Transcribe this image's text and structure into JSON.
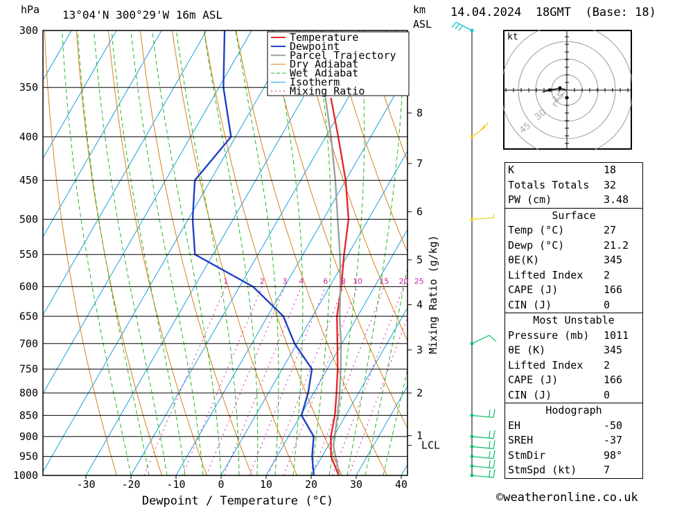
{
  "header": {
    "pressure_unit": "hPa",
    "location": "13°04'N  300°29'W  16m  ASL",
    "km_label": "km",
    "asl_label": "ASL",
    "datetime": "14.04.2024  18GMT  (Base: 18)"
  },
  "colors": {
    "temperature": "#e8282a",
    "dewpoint": "#1f3fc8",
    "parcel": "#a0a0a0",
    "dry_adiabat": "#d8801a",
    "wet_adiabat": "#22b822",
    "isotherm": "#19a0e0",
    "mixing_ratio": "#d21aa0",
    "wind_green": "#18c070",
    "wind_yellow": "#e8d020",
    "wind_cyan": "#10c8d0"
  },
  "chart_data": {
    "type": "line",
    "title": "13°04'N  300°29'W  16m  ASL",
    "xlabel": "Dewpoint / Temperature (°C)",
    "ylabel": "hPa",
    "ylabel_right": "Mixing Ratio (g/kg)",
    "xlim": [
      -40,
      40
    ],
    "pressure_levels": [
      300,
      350,
      400,
      450,
      500,
      550,
      600,
      650,
      700,
      750,
      800,
      850,
      900,
      950,
      1000
    ],
    "temp_ticks": [
      -30,
      -20,
      -10,
      0,
      10,
      20,
      30,
      40
    ],
    "km_ticks": [
      {
        "label": "1",
        "p": 898
      },
      {
        "label": "2",
        "p": 800
      },
      {
        "label": "3",
        "p": 712
      },
      {
        "label": "4",
        "p": 630
      },
      {
        "label": "5",
        "p": 558
      },
      {
        "label": "6",
        "p": 490
      },
      {
        "label": "7",
        "p": 430
      },
      {
        "label": "8",
        "p": 375
      }
    ],
    "lcl": {
      "label": "LCL",
      "p": 922
    },
    "mixing_ratio_labels": [
      "1",
      "2",
      "3",
      "4",
      "6",
      "8",
      "10",
      "15",
      "20",
      "25"
    ],
    "mixing_ratio_values": [
      1,
      2,
      3,
      4,
      6,
      8,
      10,
      15,
      20,
      25
    ],
    "legend": [
      "Temperature",
      "Dewpoint",
      "Parcel Trajectory",
      "Dry Adiabat",
      "Wet Adiabat",
      "Isotherm",
      "Mixing Ratio"
    ],
    "legend_position": "top-center",
    "series": [
      {
        "name": "Temperature",
        "points": [
          [
            1011,
            27.0
          ],
          [
            950,
            22.0
          ],
          [
            900,
            19.4
          ],
          [
            850,
            17.6
          ],
          [
            800,
            15.1
          ],
          [
            750,
            12.3
          ],
          [
            700,
            9.0
          ],
          [
            650,
            5.4
          ],
          [
            600,
            2.6
          ],
          [
            550,
            -0.9
          ],
          [
            500,
            -4.4
          ],
          [
            450,
            -10.0
          ],
          [
            400,
            -17.2
          ],
          [
            360,
            -23.8
          ]
        ]
      },
      {
        "name": "Dewpoint",
        "points": [
          [
            1011,
            21.2
          ],
          [
            950,
            17.8
          ],
          [
            900,
            15.6
          ],
          [
            850,
            10.2
          ],
          [
            800,
            8.8
          ],
          [
            750,
            6.6
          ],
          [
            700,
            -0.5
          ],
          [
            650,
            -6.5
          ],
          [
            600,
            -17.0
          ],
          [
            550,
            -34.0
          ],
          [
            500,
            -39.0
          ],
          [
            450,
            -43.5
          ],
          [
            400,
            -41.0
          ],
          [
            350,
            -49.0
          ],
          [
            300,
            -56.0
          ]
        ]
      },
      {
        "name": "Parcel Trajectory",
        "points": [
          [
            1011,
            27.0
          ],
          [
            922,
            21.1
          ],
          [
            850,
            18.2
          ],
          [
            800,
            15.8
          ],
          [
            750,
            13.0
          ],
          [
            700,
            9.8
          ],
          [
            650,
            6.0
          ],
          [
            600,
            2.4
          ],
          [
            550,
            -1.8
          ],
          [
            500,
            -6.8
          ],
          [
            450,
            -12.3
          ],
          [
            400,
            -18.8
          ],
          [
            360,
            -25.0
          ],
          [
            330,
            -29.5
          ],
          [
            300,
            -34.5
          ]
        ]
      }
    ],
    "wind_barbs": [
      {
        "p": 1000,
        "color": "green"
      },
      {
        "p": 975,
        "color": "green"
      },
      {
        "p": 950,
        "color": "green"
      },
      {
        "p": 925,
        "color": "green"
      },
      {
        "p": 900,
        "color": "green"
      },
      {
        "p": 850,
        "color": "green"
      },
      {
        "p": 700,
        "color": "green"
      },
      {
        "p": 500,
        "color": "yellow"
      },
      {
        "p": 400,
        "color": "yellow"
      },
      {
        "p": 300,
        "color": "cyan"
      }
    ]
  },
  "hodograph": {
    "unit_label": "kt",
    "ring_labels": [
      "15",
      "30",
      "45"
    ]
  },
  "indices": {
    "top": [
      {
        "label": "K",
        "value": "18"
      },
      {
        "label": "Totals Totals",
        "value": "32"
      },
      {
        "label": "PW (cm)",
        "value": "3.48"
      }
    ],
    "surface": {
      "heading": "Surface",
      "rows": [
        {
          "label": "Temp (°C)",
          "value": "27"
        },
        {
          "label": "Dewp (°C)",
          "value": "21.2"
        },
        {
          "label": "θE(K)",
          "value": "345"
        },
        {
          "label": "Lifted Index",
          "value": "2"
        },
        {
          "label": "CAPE (J)",
          "value": "166"
        },
        {
          "label": "CIN (J)",
          "value": "0"
        }
      ]
    },
    "most_unstable": {
      "heading": "Most Unstable",
      "rows": [
        {
          "label": "Pressure (mb)",
          "value": "1011"
        },
        {
          "label": "θE (K)",
          "value": "345"
        },
        {
          "label": "Lifted Index",
          "value": "2"
        },
        {
          "label": "CAPE (J)",
          "value": "166"
        },
        {
          "label": "CIN (J)",
          "value": "0"
        }
      ]
    },
    "hodograph": {
      "heading": "Hodograph",
      "rows": [
        {
          "label": "EH",
          "value": "-50"
        },
        {
          "label": "SREH",
          "value": "-37"
        },
        {
          "label": "StmDir",
          "value": "98°"
        },
        {
          "label": "StmSpd (kt)",
          "value": "7"
        }
      ]
    }
  },
  "credit": "©weatheronline.co.uk"
}
